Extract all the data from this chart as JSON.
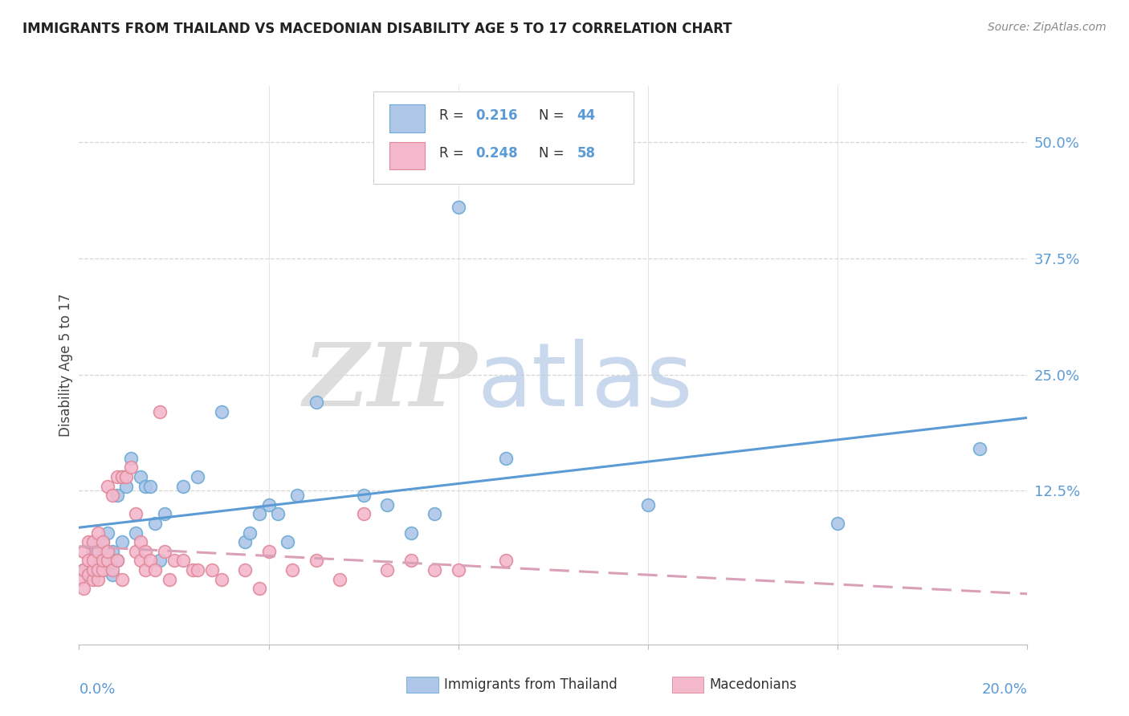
{
  "title": "IMMIGRANTS FROM THAILAND VS MACEDONIAN DISABILITY AGE 5 TO 17 CORRELATION CHART",
  "source": "Source: ZipAtlas.com",
  "ylabel": "Disability Age 5 to 17",
  "ytick_labels": [
    "50.0%",
    "37.5%",
    "25.0%",
    "12.5%"
  ],
  "ytick_values": [
    0.5,
    0.375,
    0.25,
    0.125
  ],
  "xlim": [
    0.0,
    0.2
  ],
  "ylim": [
    -0.04,
    0.56
  ],
  "thailand_scatter": [
    [
      0.001,
      0.04
    ],
    [
      0.002,
      0.035
    ],
    [
      0.003,
      0.06
    ],
    [
      0.003,
      0.04
    ],
    [
      0.004,
      0.05
    ],
    [
      0.005,
      0.07
    ],
    [
      0.005,
      0.04
    ],
    [
      0.006,
      0.045
    ],
    [
      0.006,
      0.08
    ],
    [
      0.007,
      0.06
    ],
    [
      0.007,
      0.035
    ],
    [
      0.008,
      0.05
    ],
    [
      0.008,
      0.12
    ],
    [
      0.009,
      0.14
    ],
    [
      0.009,
      0.07
    ],
    [
      0.01,
      0.13
    ],
    [
      0.011,
      0.16
    ],
    [
      0.012,
      0.08
    ],
    [
      0.013,
      0.14
    ],
    [
      0.014,
      0.13
    ],
    [
      0.015,
      0.13
    ],
    [
      0.016,
      0.09
    ],
    [
      0.017,
      0.05
    ],
    [
      0.018,
      0.1
    ],
    [
      0.022,
      0.13
    ],
    [
      0.025,
      0.14
    ],
    [
      0.03,
      0.21
    ],
    [
      0.035,
      0.07
    ],
    [
      0.036,
      0.08
    ],
    [
      0.038,
      0.1
    ],
    [
      0.04,
      0.11
    ],
    [
      0.042,
      0.1
    ],
    [
      0.044,
      0.07
    ],
    [
      0.046,
      0.12
    ],
    [
      0.05,
      0.22
    ],
    [
      0.06,
      0.12
    ],
    [
      0.065,
      0.11
    ],
    [
      0.07,
      0.08
    ],
    [
      0.075,
      0.1
    ],
    [
      0.08,
      0.43
    ],
    [
      0.09,
      0.16
    ],
    [
      0.12,
      0.11
    ],
    [
      0.16,
      0.09
    ],
    [
      0.19,
      0.17
    ]
  ],
  "macedonian_scatter": [
    [
      0.0,
      0.03
    ],
    [
      0.001,
      0.02
    ],
    [
      0.001,
      0.04
    ],
    [
      0.001,
      0.06
    ],
    [
      0.002,
      0.035
    ],
    [
      0.002,
      0.05
    ],
    [
      0.002,
      0.07
    ],
    [
      0.003,
      0.03
    ],
    [
      0.003,
      0.04
    ],
    [
      0.003,
      0.05
    ],
    [
      0.003,
      0.07
    ],
    [
      0.004,
      0.03
    ],
    [
      0.004,
      0.04
    ],
    [
      0.004,
      0.06
    ],
    [
      0.004,
      0.08
    ],
    [
      0.005,
      0.04
    ],
    [
      0.005,
      0.05
    ],
    [
      0.005,
      0.07
    ],
    [
      0.006,
      0.05
    ],
    [
      0.006,
      0.06
    ],
    [
      0.006,
      0.13
    ],
    [
      0.007,
      0.04
    ],
    [
      0.007,
      0.12
    ],
    [
      0.008,
      0.05
    ],
    [
      0.008,
      0.14
    ],
    [
      0.009,
      0.03
    ],
    [
      0.009,
      0.14
    ],
    [
      0.01,
      0.14
    ],
    [
      0.011,
      0.15
    ],
    [
      0.012,
      0.06
    ],
    [
      0.012,
      0.1
    ],
    [
      0.013,
      0.05
    ],
    [
      0.013,
      0.07
    ],
    [
      0.014,
      0.04
    ],
    [
      0.014,
      0.06
    ],
    [
      0.015,
      0.05
    ],
    [
      0.016,
      0.04
    ],
    [
      0.017,
      0.21
    ],
    [
      0.018,
      0.06
    ],
    [
      0.019,
      0.03
    ],
    [
      0.02,
      0.05
    ],
    [
      0.022,
      0.05
    ],
    [
      0.024,
      0.04
    ],
    [
      0.025,
      0.04
    ],
    [
      0.028,
      0.04
    ],
    [
      0.03,
      0.03
    ],
    [
      0.035,
      0.04
    ],
    [
      0.038,
      0.02
    ],
    [
      0.04,
      0.06
    ],
    [
      0.045,
      0.04
    ],
    [
      0.05,
      0.05
    ],
    [
      0.055,
      0.03
    ],
    [
      0.06,
      0.1
    ],
    [
      0.065,
      0.04
    ],
    [
      0.07,
      0.05
    ],
    [
      0.075,
      0.04
    ],
    [
      0.08,
      0.04
    ],
    [
      0.09,
      0.05
    ]
  ],
  "thailand_line_color": "#5b9bd5",
  "macedonian_line_color": "#d9a0b8",
  "thailand_scatter_fill": "#aec6e8",
  "thailand_scatter_edge": "#6aaad4",
  "macedonian_scatter_fill": "#f4b8cc",
  "macedonian_scatter_edge": "#e08898",
  "background_color": "#ffffff",
  "grid_color": "#cccccc",
  "axis_label_color": "#5b9bd5",
  "title_color": "#222222",
  "source_color": "#888888",
  "ylabel_color": "#444444",
  "legend_r1": "0.216",
  "legend_n1": "44",
  "legend_r2": "0.248",
  "legend_n2": "58",
  "legend_val_color": "#5b9bd5",
  "legend_text_color": "#333333"
}
